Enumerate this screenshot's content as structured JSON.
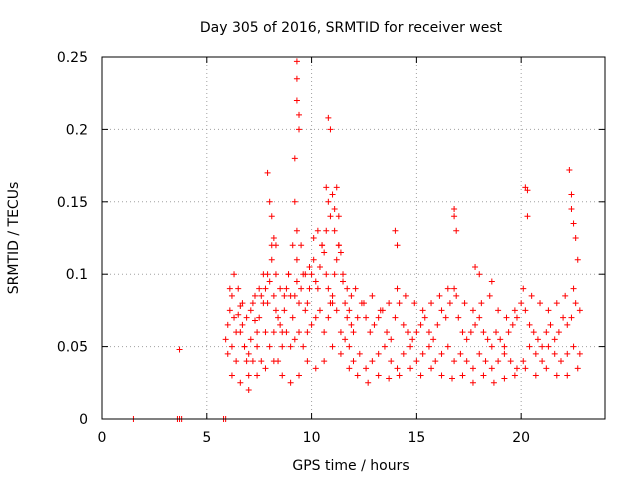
{
  "chart_data": {
    "type": "scatter",
    "title": "Day 305 of 2016, SRMTID for receiver west",
    "xlabel": "GPS time / hours",
    "ylabel": "SRMTID / TECUs",
    "xlim": [
      0,
      24
    ],
    "ylim": [
      0,
      0.25
    ],
    "xticks": [
      0,
      5,
      10,
      15,
      20
    ],
    "xtick_labels": [
      "0",
      "5",
      "10",
      "15",
      "20"
    ],
    "yticks": [
      0,
      0.05,
      0.1,
      0.15,
      0.2,
      0.25
    ],
    "ytick_labels": [
      "0",
      "0.05",
      "0.1",
      "0.15",
      "0.2",
      "0.25"
    ],
    "grid": true,
    "marker": "plus",
    "color": "#ff0000",
    "series": [
      {
        "name": "SRMTID",
        "x": [
          1.5,
          3.6,
          3.7,
          3.8,
          5.8,
          5.9,
          3.7,
          5.9,
          6.0,
          6.1,
          6.2,
          6.3,
          6.4,
          6.5,
          6.6,
          6.7,
          6.8,
          6.9,
          7.0,
          7.1,
          7.2,
          7.3,
          7.4,
          7.5,
          7.6,
          7.7,
          7.8,
          7.9,
          8.0,
          8.1,
          8.2,
          8.3,
          8.4,
          8.5,
          8.6,
          8.7,
          8.8,
          8.9,
          9.0,
          9.1,
          9.2,
          9.3,
          9.4,
          9.5,
          9.6,
          9.7,
          9.8,
          9.9,
          10.0,
          10.1,
          10.2,
          10.3,
          10.4,
          10.5,
          10.6,
          10.7,
          10.8,
          10.9,
          11.0,
          11.1,
          11.2,
          11.3,
          11.4,
          11.5,
          11.6,
          11.7,
          11.8,
          11.9,
          12.0,
          12.2,
          12.4,
          12.6,
          12.8,
          13.0,
          13.2,
          13.4,
          13.6,
          13.8,
          14.0,
          14.2,
          14.4,
          14.6,
          14.8,
          15.0,
          15.2,
          15.4,
          15.6,
          15.8,
          16.0,
          16.2,
          16.4,
          16.6,
          16.8,
          17.0,
          17.2,
          17.4,
          17.6,
          17.8,
          18.0,
          18.2,
          18.4,
          18.6,
          18.8,
          19.0,
          19.2,
          19.4,
          19.6,
          19.8,
          20.0,
          20.2,
          20.4,
          20.6,
          20.8,
          21.0,
          21.2,
          21.4,
          21.6,
          21.8,
          22.0,
          22.2,
          22.4,
          22.6,
          22.8,
          6.0,
          6.2,
          6.4,
          6.6,
          6.8,
          7.0,
          7.2,
          7.4,
          7.6,
          7.8,
          8.0,
          8.2,
          8.4,
          8.6,
          8.8,
          9.0,
          9.2,
          9.4,
          9.6,
          9.8,
          10.0,
          10.2,
          10.4,
          10.6,
          10.8,
          11.0,
          11.2,
          11.4,
          11.6,
          11.8,
          12.0,
          12.3,
          12.6,
          12.9,
          13.2,
          13.5,
          13.8,
          14.1,
          14.4,
          14.7,
          15.0,
          15.3,
          15.6,
          15.9,
          16.2,
          16.5,
          16.8,
          17.1,
          17.4,
          17.7,
          18.0,
          18.3,
          18.6,
          18.9,
          19.2,
          19.5,
          19.8,
          20.1,
          20.4,
          20.7,
          21.0,
          21.3,
          21.6,
          21.9,
          22.2,
          22.5,
          22.8,
          6.1,
          6.3,
          6.5,
          6.7,
          6.9,
          7.1,
          7.3,
          7.5,
          7.7,
          7.9,
          8.1,
          8.3,
          8.5,
          8.7,
          8.9,
          9.1,
          9.3,
          9.5,
          9.7,
          9.9,
          10.1,
          10.3,
          10.5,
          10.7,
          10.9,
          11.1,
          11.3,
          11.5,
          11.7,
          11.9,
          12.1,
          12.5,
          12.9,
          13.3,
          13.7,
          14.1,
          14.5,
          14.9,
          15.3,
          15.7,
          16.1,
          16.5,
          16.9,
          17.3,
          17.7,
          18.1,
          18.5,
          18.9,
          19.3,
          19.7,
          20.1,
          20.5,
          20.9,
          21.3,
          21.7,
          22.1,
          22.5,
          6.2,
          6.6,
          7.0,
          7.4,
          7.8,
          8.2,
          8.6,
          9.0,
          9.4,
          9.8,
          10.2,
          10.6,
          11.0,
          11.4,
          11.8,
          12.2,
          12.7,
          13.2,
          13.7,
          14.2,
          14.7,
          15.2,
          15.7,
          16.2,
          16.7,
          17.2,
          17.7,
          18.2,
          18.7,
          19.2,
          19.7,
          20.2,
          20.7,
          21.2,
          21.7,
          22.2,
          22.7,
          7.9,
          8.0,
          8.1,
          8.2,
          8.3,
          9.2,
          9.3,
          9.3,
          9.3,
          9.4,
          9.4,
          9.2,
          9.3,
          10.8,
          10.9,
          10.7,
          10.8,
          11.2,
          11.3,
          11.0,
          11.1,
          14.0,
          14.1,
          16.8,
          16.9,
          16.8,
          20.2,
          20.3,
          20.3,
          22.3,
          22.4,
          22.4,
          22.5,
          22.6,
          22.7,
          17.8,
          18.0,
          18.6
        ],
        "y": [
          0.0,
          0.0,
          0.0,
          0.0,
          0.0,
          0.0,
          0.048,
          0.055,
          0.065,
          0.075,
          0.085,
          0.07,
          0.06,
          0.072,
          0.078,
          0.065,
          0.05,
          0.04,
          0.045,
          0.055,
          0.08,
          0.068,
          0.06,
          0.07,
          0.085,
          0.1,
          0.09,
          0.08,
          0.095,
          0.11,
          0.085,
          0.075,
          0.07,
          0.065,
          0.06,
          0.075,
          0.09,
          0.1,
          0.085,
          0.07,
          0.085,
          0.095,
          0.08,
          0.09,
          0.1,
          0.075,
          0.08,
          0.09,
          0.1,
          0.11,
          0.095,
          0.09,
          0.105,
          0.12,
          0.115,
          0.1,
          0.09,
          0.08,
          0.085,
          0.1,
          0.11,
          0.12,
          0.115,
          0.095,
          0.08,
          0.07,
          0.075,
          0.065,
          0.06,
          0.07,
          0.08,
          0.07,
          0.06,
          0.065,
          0.07,
          0.075,
          0.06,
          0.055,
          0.07,
          0.08,
          0.065,
          0.06,
          0.055,
          0.06,
          0.065,
          0.07,
          0.06,
          0.055,
          0.065,
          0.075,
          0.07,
          0.08,
          0.09,
          0.07,
          0.06,
          0.055,
          0.06,
          0.065,
          0.07,
          0.06,
          0.055,
          0.05,
          0.06,
          0.055,
          0.05,
          0.06,
          0.065,
          0.07,
          0.08,
          0.075,
          0.065,
          0.06,
          0.055,
          0.05,
          0.06,
          0.065,
          0.055,
          0.06,
          0.07,
          0.065,
          0.07,
          0.08,
          0.075,
          0.045,
          0.05,
          0.04,
          0.06,
          0.05,
          0.03,
          0.04,
          0.05,
          0.04,
          0.06,
          0.05,
          0.06,
          0.04,
          0.05,
          0.06,
          0.05,
          0.055,
          0.06,
          0.05,
          0.06,
          0.065,
          0.07,
          0.075,
          0.06,
          0.07,
          0.08,
          0.075,
          0.06,
          0.055,
          0.05,
          0.04,
          0.045,
          0.035,
          0.04,
          0.045,
          0.05,
          0.04,
          0.035,
          0.045,
          0.05,
          0.04,
          0.045,
          0.05,
          0.04,
          0.045,
          0.05,
          0.04,
          0.045,
          0.04,
          0.035,
          0.045,
          0.04,
          0.035,
          0.04,
          0.045,
          0.04,
          0.035,
          0.04,
          0.05,
          0.045,
          0.04,
          0.05,
          0.045,
          0.04,
          0.045,
          0.05,
          0.045,
          0.09,
          0.1,
          0.09,
          0.08,
          0.07,
          0.075,
          0.085,
          0.09,
          0.08,
          0.1,
          0.12,
          0.1,
          0.09,
          0.085,
          0.1,
          0.12,
          0.11,
          0.12,
          0.1,
          0.105,
          0.125,
          0.13,
          0.12,
          0.13,
          0.14,
          0.13,
          0.12,
          0.1,
          0.09,
          0.085,
          0.09,
          0.08,
          0.085,
          0.075,
          0.08,
          0.09,
          0.085,
          0.08,
          0.075,
          0.08,
          0.085,
          0.09,
          0.085,
          0.08,
          0.075,
          0.08,
          0.085,
          0.075,
          0.07,
          0.075,
          0.09,
          0.085,
          0.08,
          0.075,
          0.08,
          0.085,
          0.09,
          0.03,
          0.025,
          0.02,
          0.03,
          0.035,
          0.04,
          0.03,
          0.025,
          0.03,
          0.04,
          0.035,
          0.04,
          0.05,
          0.045,
          0.035,
          0.03,
          0.025,
          0.03,
          0.028,
          0.03,
          0.035,
          0.03,
          0.035,
          0.03,
          0.028,
          0.03,
          0.025,
          0.03,
          0.025,
          0.028,
          0.03,
          0.035,
          0.03,
          0.035,
          0.03,
          0.03,
          0.035,
          0.17,
          0.15,
          0.14,
          0.125,
          0.12,
          0.18,
          0.22,
          0.235,
          0.247,
          0.21,
          0.2,
          0.15,
          0.13,
          0.208,
          0.2,
          0.16,
          0.15,
          0.16,
          0.14,
          0.155,
          0.145,
          0.13,
          0.12,
          0.145,
          0.13,
          0.14,
          0.16,
          0.158,
          0.14,
          0.172,
          0.155,
          0.145,
          0.135,
          0.125,
          0.11,
          0.105,
          0.1,
          0.095
        ]
      }
    ]
  }
}
